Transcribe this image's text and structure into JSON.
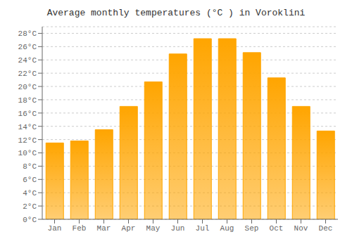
{
  "chart_data": {
    "type": "bar",
    "title": "Average monthly temperatures (°C ) in Voroklini",
    "categories": [
      "Jan",
      "Feb",
      "Mar",
      "Apr",
      "May",
      "Jun",
      "Jul",
      "Aug",
      "Sep",
      "Oct",
      "Nov",
      "Dec"
    ],
    "values": [
      11.5,
      11.8,
      13.5,
      17.0,
      20.7,
      24.9,
      27.2,
      27.2,
      25.1,
      21.3,
      17.0,
      13.3
    ],
    "color": "#FFA500",
    "ylim": [
      0,
      29
    ],
    "yticks": [
      {
        "value": 0,
        "label": "0°C"
      },
      {
        "value": 2,
        "label": "2°C"
      },
      {
        "value": 4,
        "label": "4°C"
      },
      {
        "value": 6,
        "label": "6°C"
      },
      {
        "value": 8,
        "label": "8°C"
      },
      {
        "value": 10,
        "label": "10°C"
      },
      {
        "value": 12,
        "label": "12°C"
      },
      {
        "value": 14,
        "label": "14°C"
      },
      {
        "value": 16,
        "label": "16°C"
      },
      {
        "value": 18,
        "label": "18°C"
      },
      {
        "value": 20,
        "label": "20°C"
      },
      {
        "value": 22,
        "label": "22°C"
      },
      {
        "value": 24,
        "label": "24°C"
      },
      {
        "value": 26,
        "label": "26°C"
      },
      {
        "value": 28,
        "label": "28°C"
      }
    ],
    "grid": true
  }
}
